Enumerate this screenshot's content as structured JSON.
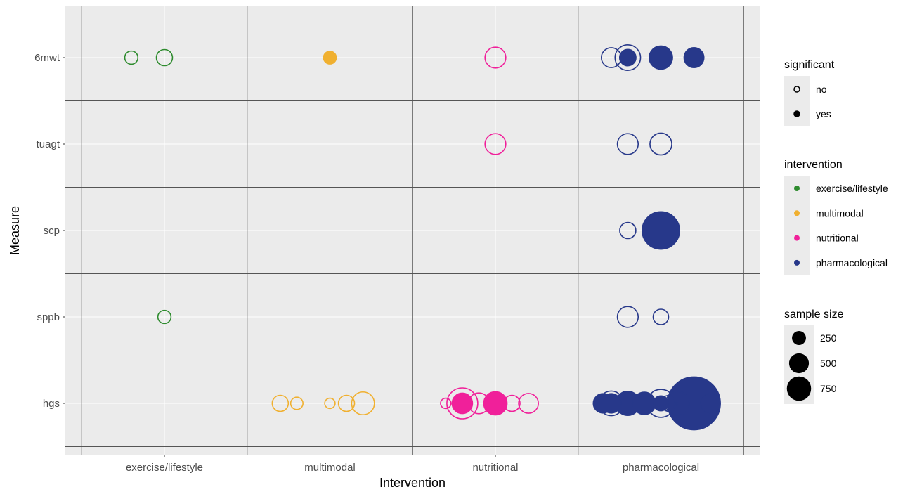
{
  "chart_data": {
    "type": "scatter",
    "title": "",
    "xlabel": "Intervention",
    "ylabel": "Measure",
    "x_categories": [
      "exercise/lifestyle",
      "multimodal",
      "nutritional",
      "pharmacological"
    ],
    "y_categories": [
      "6mwt",
      "tuagt",
      "scp",
      "sppb",
      "hgs"
    ],
    "colors": {
      "exercise/lifestyle": "#2e8b2e",
      "multimodal": "#f0b030",
      "nutritional": "#f0209a",
      "pharmacological": "#27388a"
    },
    "background": "#ebebeb",
    "legend": {
      "position": "right",
      "significant": {
        "title": "significant",
        "items": [
          {
            "label": "no",
            "filled": false
          },
          {
            "label": "yes",
            "filled": true
          }
        ]
      },
      "intervention": {
        "title": "intervention",
        "items": [
          "exercise/lifestyle",
          "multimodal",
          "nutritional",
          "pharmacological"
        ]
      },
      "sample_size": {
        "title": "sample size",
        "items": [
          {
            "label": "250",
            "value": 250
          },
          {
            "label": "500",
            "value": 500
          },
          {
            "label": "750",
            "value": 750
          }
        ]
      }
    },
    "points": [
      {
        "intervention": "exercise/lifestyle",
        "measure": "6mwt",
        "x": -0.2,
        "n": 40,
        "significant": false
      },
      {
        "intervention": "exercise/lifestyle",
        "measure": "6mwt",
        "x": 0.0,
        "n": 60,
        "significant": false
      },
      {
        "intervention": "exercise/lifestyle",
        "measure": "sppb",
        "x": 0.0,
        "n": 40,
        "significant": false
      },
      {
        "intervention": "multimodal",
        "measure": "6mwt",
        "x": 0.0,
        "n": 40,
        "significant": true
      },
      {
        "intervention": "multimodal",
        "measure": "hgs",
        "x": -0.3,
        "n": 60,
        "significant": false
      },
      {
        "intervention": "multimodal",
        "measure": "hgs",
        "x": -0.2,
        "n": 35,
        "significant": false
      },
      {
        "intervention": "multimodal",
        "measure": "hgs",
        "x": 0.0,
        "n": 25,
        "significant": false
      },
      {
        "intervention": "multimodal",
        "measure": "hgs",
        "x": 0.1,
        "n": 60,
        "significant": false
      },
      {
        "intervention": "multimodal",
        "measure": "hgs",
        "x": 0.2,
        "n": 120,
        "significant": false
      },
      {
        "intervention": "nutritional",
        "measure": "6mwt",
        "x": 0.0,
        "n": 100,
        "significant": false
      },
      {
        "intervention": "nutritional",
        "measure": "tuagt",
        "x": 0.0,
        "n": 100,
        "significant": false
      },
      {
        "intervention": "nutritional",
        "measure": "hgs",
        "x": -0.3,
        "n": 25,
        "significant": false
      },
      {
        "intervention": "nutritional",
        "measure": "hgs",
        "x": -0.2,
        "n": 220,
        "significant": false
      },
      {
        "intervention": "nutritional",
        "measure": "hgs",
        "x": -0.2,
        "n": 100,
        "significant": true
      },
      {
        "intervention": "nutritional",
        "measure": "hgs",
        "x": -0.1,
        "n": 100,
        "significant": false
      },
      {
        "intervention": "nutritional",
        "measure": "hgs",
        "x": 0.0,
        "n": 130,
        "significant": true
      },
      {
        "intervention": "nutritional",
        "measure": "hgs",
        "x": 0.1,
        "n": 60,
        "significant": false
      },
      {
        "intervention": "nutritional",
        "measure": "hgs",
        "x": 0.2,
        "n": 90,
        "significant": false
      },
      {
        "intervention": "pharmacological",
        "measure": "6mwt",
        "x": -0.3,
        "n": 90,
        "significant": false
      },
      {
        "intervention": "pharmacological",
        "measure": "6mwt",
        "x": -0.2,
        "n": 150,
        "significant": false
      },
      {
        "intervention": "pharmacological",
        "measure": "6mwt",
        "x": -0.2,
        "n": 65,
        "significant": true
      },
      {
        "intervention": "pharmacological",
        "measure": "6mwt",
        "x": 0.0,
        "n": 130,
        "significant": true
      },
      {
        "intervention": "pharmacological",
        "measure": "6mwt",
        "x": 0.2,
        "n": 95,
        "significant": true
      },
      {
        "intervention": "pharmacological",
        "measure": "tuagt",
        "x": -0.2,
        "n": 100,
        "significant": false
      },
      {
        "intervention": "pharmacological",
        "measure": "tuagt",
        "x": 0.0,
        "n": 110,
        "significant": false
      },
      {
        "intervention": "pharmacological",
        "measure": "scp",
        "x": -0.2,
        "n": 60,
        "significant": false
      },
      {
        "intervention": "pharmacological",
        "measure": "scp",
        "x": 0.0,
        "n": 330,
        "significant": true
      },
      {
        "intervention": "pharmacological",
        "measure": "sppb",
        "x": -0.2,
        "n": 100,
        "significant": false
      },
      {
        "intervention": "pharmacological",
        "measure": "sppb",
        "x": 0.0,
        "n": 55,
        "significant": false
      },
      {
        "intervention": "pharmacological",
        "measure": "hgs",
        "x": -0.35,
        "n": 90,
        "significant": true
      },
      {
        "intervention": "pharmacological",
        "measure": "hgs",
        "x": -0.3,
        "n": 140,
        "significant": false
      },
      {
        "intervention": "pharmacological",
        "measure": "hgs",
        "x": -0.3,
        "n": 90,
        "significant": true
      },
      {
        "intervention": "pharmacological",
        "measure": "hgs",
        "x": -0.2,
        "n": 140,
        "significant": true
      },
      {
        "intervention": "pharmacological",
        "measure": "hgs",
        "x": -0.1,
        "n": 120,
        "significant": true
      },
      {
        "intervention": "pharmacological",
        "measure": "hgs",
        "x": 0.0,
        "n": 180,
        "significant": false
      },
      {
        "intervention": "pharmacological",
        "measure": "hgs",
        "x": 0.0,
        "n": 55,
        "significant": true
      },
      {
        "intervention": "pharmacological",
        "measure": "hgs",
        "x": 0.05,
        "n": 60,
        "significant": false
      },
      {
        "intervention": "pharmacological",
        "measure": "hgs",
        "x": 0.1,
        "n": 130,
        "significant": false
      },
      {
        "intervention": "pharmacological",
        "measure": "hgs",
        "x": 0.2,
        "n": 650,
        "significant": true
      },
      {
        "intervention": "pharmacological",
        "measure": "hgs",
        "x": 0.3,
        "n": 90,
        "significant": true
      }
    ]
  }
}
